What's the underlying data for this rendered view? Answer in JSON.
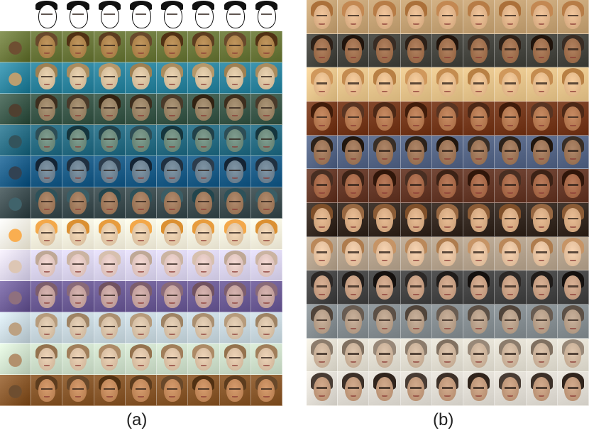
{
  "captions": {
    "a": "(a)",
    "b": "(b)"
  },
  "panel_a": {
    "rows": [
      {
        "kind": "sketch-header",
        "bg": "#ffffff",
        "skin": "#ffffff",
        "hair": "#111111"
      },
      {
        "kind": "style",
        "bg": "#6d7a3e",
        "skin": "#b0864e",
        "hair": "#5a3b1e"
      },
      {
        "kind": "style",
        "bg": "#2f86a0",
        "skin": "#d9c2a0",
        "hair": "#a88a5c"
      },
      {
        "kind": "style",
        "bg": "#3d5a4c",
        "skin": "#9a8466",
        "hair": "#3b2c1c"
      },
      {
        "kind": "style",
        "bg": "#2b6f86",
        "skin": "#6f8c7e",
        "hair": "#1f3f47"
      },
      {
        "kind": "style",
        "bg": "#1f5f8a",
        "skin": "#6f8494",
        "hair": "#1e2e3e"
      },
      {
        "kind": "style",
        "bg": "#3f4f52",
        "skin": "#a07a5c",
        "hair": "#2c4f57"
      },
      {
        "kind": "style",
        "bg": "#f7f2e0",
        "skin": "#e4c9a8",
        "hair": "#e59a3c"
      },
      {
        "kind": "style",
        "bg": "#dcd6ef",
        "skin": "#e3c8c2",
        "hair": "#c9b2a0"
      },
      {
        "kind": "style",
        "bg": "#6f5f98",
        "skin": "#c6a4a0",
        "hair": "#7b5c6a"
      },
      {
        "kind": "style",
        "bg": "#c9d8df",
        "skin": "#d8c2a8",
        "hair": "#a88d6e"
      },
      {
        "kind": "style",
        "bg": "#cfe0cc",
        "skin": "#dcc2a6",
        "hair": "#9e7c58"
      },
      {
        "kind": "style",
        "bg": "#8a5a2e",
        "skin": "#c48a5c",
        "hair": "#5a3a1c"
      }
    ]
  },
  "panel_b": {
    "rows": [
      {
        "bg": "#c9a77a",
        "skin": "#e0b48a",
        "hair": "#b57a44"
      },
      {
        "bg": "#4a4a44",
        "skin": "#a0704e",
        "hair": "#2a1e16"
      },
      {
        "bg": "#e9c890",
        "skin": "#e7bd8e",
        "hair": "#c28a4e"
      },
      {
        "bg": "#7a3e22",
        "skin": "#b67a52",
        "hair": "#4a2614"
      },
      {
        "bg": "#5a6a8a",
        "skin": "#9e7658",
        "hair": "#2a2018"
      },
      {
        "bg": "#6a3e2e",
        "skin": "#a86a4a",
        "hair": "#3a2014"
      },
      {
        "bg": "#3a2e26",
        "skin": "#d8ac84",
        "hair": "#8a5a34"
      },
      {
        "bg": "#b9a792",
        "skin": "#e6c2a0",
        "hair": "#b88658"
      },
      {
        "bg": "#4a4a4a",
        "skin": "#c8a084",
        "hair": "#1e1a18"
      },
      {
        "bg": "#8a9296",
        "skin": "#b8a08a",
        "hair": "#5a4e44"
      },
      {
        "bg": "#e6e2d6",
        "skin": "#cdb49c",
        "hair": "#8a7a6a"
      },
      {
        "bg": "#e4e0d8",
        "skin": "#c29a7c",
        "hair": "#3a2e26"
      }
    ]
  }
}
